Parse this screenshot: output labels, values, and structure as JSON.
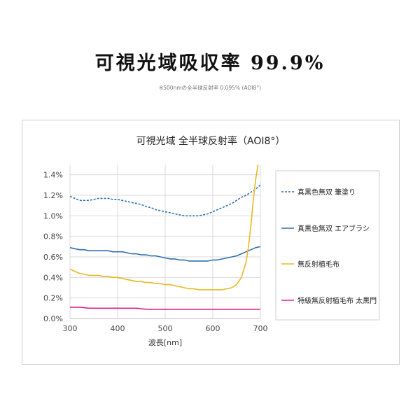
{
  "header": {
    "title": "可視光域吸収率 99.9%",
    "note": "※500nmの全半球反射率 0.095% (AOI8°)"
  },
  "chart_data": {
    "type": "line",
    "title": "可視光域 全半球反射率（AOI8°）",
    "xlabel": "波長[nm]",
    "ylabel": "",
    "xlim": [
      300,
      700
    ],
    "ylim": [
      0,
      1.5
    ],
    "x_ticks": [
      "300",
      "400",
      "500",
      "600",
      "700"
    ],
    "y_ticks": [
      "0.0%",
      "0.2%",
      "0.4%",
      "0.6%",
      "0.8%",
      "1.0%",
      "1.2%",
      "1.4%"
    ],
    "grid": true,
    "legend_position": "right",
    "series": [
      {
        "name": "真黒色無双 筆塗り",
        "color": "#2e6fb0",
        "style": "dashed",
        "x": [
          300,
          310,
          320,
          330,
          340,
          350,
          360,
          370,
          380,
          390,
          400,
          410,
          420,
          430,
          440,
          450,
          460,
          470,
          480,
          490,
          500,
          510,
          520,
          530,
          540,
          550,
          560,
          570,
          580,
          590,
          600,
          610,
          620,
          630,
          640,
          650,
          660,
          670,
          680,
          690,
          700
        ],
        "values": [
          1.19,
          1.17,
          1.15,
          1.15,
          1.15,
          1.16,
          1.17,
          1.17,
          1.17,
          1.16,
          1.16,
          1.15,
          1.14,
          1.13,
          1.12,
          1.11,
          1.09,
          1.08,
          1.06,
          1.05,
          1.04,
          1.03,
          1.02,
          1.01,
          1.0,
          1.0,
          1.0,
          1.0,
          1.01,
          1.02,
          1.04,
          1.06,
          1.08,
          1.1,
          1.12,
          1.15,
          1.18,
          1.2,
          1.23,
          1.26,
          1.3
        ]
      },
      {
        "name": "真黒色無双 エアブラシ",
        "color": "#2e6fb0",
        "style": "solid",
        "x": [
          300,
          310,
          320,
          330,
          340,
          350,
          360,
          370,
          380,
          390,
          400,
          410,
          420,
          430,
          440,
          450,
          460,
          470,
          480,
          490,
          500,
          510,
          520,
          530,
          540,
          550,
          560,
          570,
          580,
          590,
          600,
          610,
          620,
          630,
          640,
          650,
          660,
          670,
          680,
          690,
          700
        ],
        "values": [
          0.69,
          0.68,
          0.67,
          0.67,
          0.66,
          0.66,
          0.66,
          0.66,
          0.66,
          0.65,
          0.65,
          0.65,
          0.64,
          0.63,
          0.63,
          0.62,
          0.62,
          0.61,
          0.61,
          0.6,
          0.59,
          0.58,
          0.58,
          0.57,
          0.57,
          0.56,
          0.56,
          0.56,
          0.56,
          0.56,
          0.57,
          0.57,
          0.58,
          0.59,
          0.6,
          0.61,
          0.63,
          0.65,
          0.67,
          0.69,
          0.7
        ]
      },
      {
        "name": "無反射植毛布",
        "color": "#e8b820",
        "style": "solid",
        "x": [
          300,
          310,
          320,
          330,
          340,
          350,
          360,
          370,
          380,
          390,
          400,
          410,
          420,
          430,
          440,
          450,
          460,
          470,
          480,
          490,
          500,
          510,
          520,
          530,
          540,
          550,
          560,
          570,
          580,
          590,
          600,
          610,
          620,
          630,
          640,
          650,
          660,
          670,
          675,
          680,
          685,
          690,
          695
        ],
        "values": [
          0.48,
          0.46,
          0.44,
          0.43,
          0.42,
          0.42,
          0.42,
          0.41,
          0.41,
          0.4,
          0.4,
          0.39,
          0.38,
          0.37,
          0.36,
          0.36,
          0.35,
          0.35,
          0.34,
          0.34,
          0.33,
          0.33,
          0.32,
          0.31,
          0.3,
          0.29,
          0.29,
          0.28,
          0.28,
          0.28,
          0.28,
          0.28,
          0.28,
          0.29,
          0.3,
          0.33,
          0.4,
          0.55,
          0.7,
          0.9,
          1.15,
          1.35,
          1.5
        ]
      },
      {
        "name": "特級無反射植毛布 太黒門",
        "color": "#e0218a",
        "style": "solid",
        "x": [
          300,
          320,
          340,
          360,
          380,
          400,
          420,
          440,
          460,
          480,
          500,
          520,
          540,
          560,
          580,
          600,
          620,
          640,
          660,
          680,
          700
        ],
        "values": [
          0.11,
          0.11,
          0.1,
          0.1,
          0.1,
          0.1,
          0.1,
          0.1,
          0.09,
          0.09,
          0.09,
          0.09,
          0.09,
          0.09,
          0.09,
          0.09,
          0.09,
          0.09,
          0.09,
          0.09,
          0.09
        ]
      }
    ]
  }
}
